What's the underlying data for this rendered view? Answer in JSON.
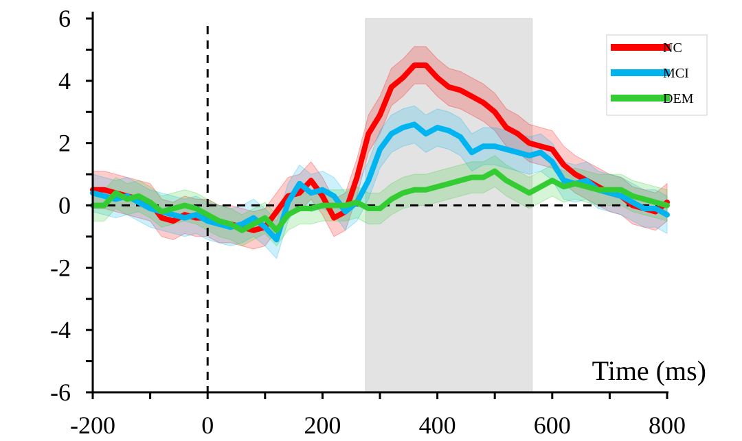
{
  "chart_data": {
    "type": "line",
    "xlabel": "Time (ms)",
    "ylabel": "",
    "xlim": [
      -200,
      800
    ],
    "ylim": [
      -6,
      6
    ],
    "x_ticks": [
      -200,
      0,
      200,
      400,
      600,
      800
    ],
    "x_tick_labels": [
      "-200",
      "0",
      "200",
      "400",
      "600",
      "800"
    ],
    "y_ticks": [
      -6,
      -4,
      -2,
      0,
      2,
      4,
      6
    ],
    "y_tick_labels": [
      "-6",
      "-4",
      "-2",
      "0",
      "2",
      "4",
      "6"
    ],
    "y_minor_step": 1,
    "x_minor_step": 100,
    "shaded_window": [
      275,
      565
    ],
    "zero_reference_lines": {
      "x": 0,
      "y": 0
    },
    "legend_position": "top-right",
    "series": [
      {
        "name": "NC",
        "color": "#ff0000",
        "x": [
          -200,
          -180,
          -160,
          -140,
          -120,
          -100,
          -80,
          -60,
          -40,
          -20,
          0,
          20,
          40,
          60,
          80,
          100,
          120,
          140,
          160,
          180,
          200,
          220,
          240,
          260,
          280,
          300,
          320,
          340,
          360,
          380,
          400,
          420,
          440,
          460,
          480,
          500,
          520,
          540,
          560,
          580,
          600,
          620,
          640,
          660,
          680,
          700,
          720,
          740,
          760,
          780,
          800
        ],
        "values": [
          0.5,
          0.5,
          0.4,
          0.3,
          0.2,
          0.1,
          -0.4,
          -0.5,
          -0.3,
          -0.4,
          -0.4,
          -0.6,
          -0.6,
          -0.7,
          -0.8,
          -0.7,
          -0.2,
          0.3,
          0.4,
          0.8,
          0.3,
          -0.4,
          -0.2,
          0.9,
          2.3,
          2.9,
          3.8,
          4.1,
          4.5,
          4.5,
          4.1,
          3.8,
          3.7,
          3.5,
          3.3,
          3.0,
          2.5,
          2.3,
          2.0,
          1.9,
          1.8,
          1.3,
          1.0,
          0.8,
          0.6,
          0.4,
          0.3,
          0.0,
          -0.1,
          -0.2,
          0.1
        ],
        "err": 0.6
      },
      {
        "name": "MCI",
        "color": "#00b4f0",
        "x": [
          -200,
          -180,
          -160,
          -140,
          -120,
          -100,
          -80,
          -60,
          -40,
          -20,
          0,
          20,
          40,
          60,
          80,
          100,
          120,
          140,
          160,
          180,
          200,
          220,
          240,
          260,
          280,
          300,
          320,
          340,
          360,
          380,
          400,
          420,
          440,
          460,
          480,
          500,
          520,
          540,
          560,
          580,
          600,
          620,
          640,
          660,
          680,
          700,
          720,
          740,
          760,
          780,
          800
        ],
        "values": [
          0.4,
          0.3,
          0.2,
          0.3,
          0.1,
          -0.1,
          -0.2,
          -0.3,
          -0.4,
          -0.3,
          -0.5,
          -0.6,
          -0.7,
          -0.6,
          -0.4,
          -0.7,
          -1.1,
          0.1,
          0.7,
          0.4,
          0.5,
          0.3,
          -0.2,
          0.1,
          0.8,
          1.8,
          2.3,
          2.5,
          2.6,
          2.3,
          2.5,
          2.4,
          2.2,
          1.7,
          1.9,
          1.9,
          1.8,
          1.7,
          1.6,
          1.7,
          1.4,
          0.8,
          0.7,
          0.8,
          0.5,
          0.4,
          0.3,
          0.1,
          -0.1,
          -0.1,
          -0.3
        ],
        "err": 0.6
      },
      {
        "name": "DEM",
        "color": "#33cc33",
        "x": [
          -200,
          -180,
          -160,
          -140,
          -120,
          -100,
          -80,
          -60,
          -40,
          -20,
          0,
          20,
          40,
          60,
          80,
          100,
          120,
          140,
          160,
          180,
          200,
          220,
          240,
          260,
          280,
          300,
          320,
          340,
          360,
          380,
          400,
          420,
          440,
          460,
          480,
          500,
          520,
          540,
          560,
          580,
          600,
          620,
          640,
          660,
          680,
          700,
          720,
          740,
          760,
          780,
          800
        ],
        "values": [
          0.0,
          0.0,
          0.4,
          0.2,
          0.3,
          0.1,
          -0.2,
          -0.1,
          0.0,
          -0.1,
          -0.3,
          -0.5,
          -0.6,
          -0.8,
          -0.6,
          -0.4,
          -0.8,
          -0.3,
          -0.1,
          -0.1,
          0.0,
          0.0,
          0.0,
          0.1,
          -0.1,
          -0.1,
          0.2,
          0.4,
          0.5,
          0.5,
          0.6,
          0.7,
          0.8,
          0.9,
          0.9,
          1.1,
          0.8,
          0.6,
          0.4,
          0.6,
          0.8,
          0.6,
          0.7,
          0.6,
          0.5,
          0.5,
          0.5,
          0.3,
          0.2,
          0.1,
          0.0
        ],
        "err": 0.5
      }
    ]
  }
}
